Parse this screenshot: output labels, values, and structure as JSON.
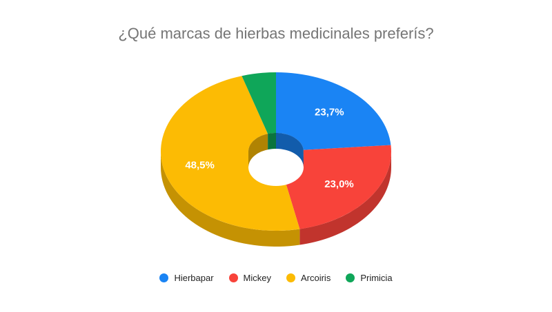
{
  "chart_data": {
    "type": "pie",
    "style": "3d-donut",
    "title": "¿Qué marcas de hierbas medicinales preferís?",
    "series": [
      {
        "name": "Hierbapar",
        "value": 23.7,
        "label": "23,7%",
        "color": "#1a84f4"
      },
      {
        "name": "Mickey",
        "value": 23.0,
        "label": "23,0%",
        "color": "#f8433a"
      },
      {
        "name": "Arcoiris",
        "value": 48.5,
        "label": "48,5%",
        "color": "#fcbb04"
      },
      {
        "name": "Primicia",
        "value": 4.8,
        "label": "",
        "color": "#0fa659"
      }
    ],
    "legend_position": "bottom"
  }
}
